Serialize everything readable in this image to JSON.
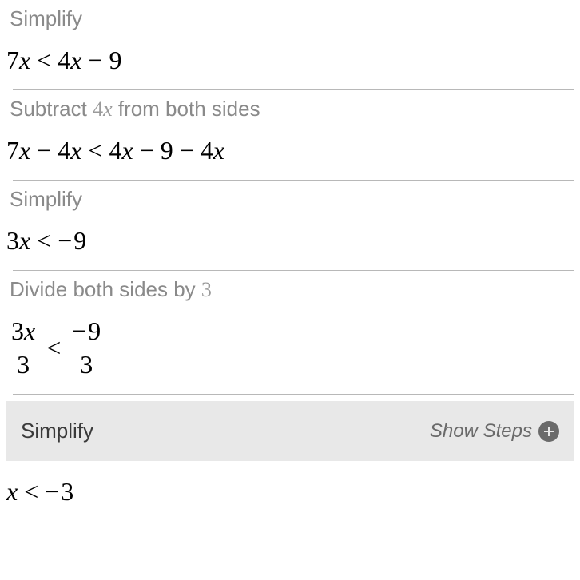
{
  "steps": [
    {
      "label": "Simplify",
      "equation_html": "7<span class='var'>x</span><span class='op'>&lt;</span>4<span class='var'>x</span><span class='op'>−</span>9"
    },
    {
      "label_html": "Subtract <span class='math-inline'>4<span class='var'>x</span></span> from both sides",
      "equation_html": "7<span class='var'>x</span><span class='op'>−</span>4<span class='var'>x</span><span class='op'>&lt;</span>4<span class='var'>x</span><span class='op'>−</span>9<span class='op'>−</span>4<span class='var'>x</span>"
    },
    {
      "label": "Simplify",
      "equation_html": "3<span class='var'>x</span><span class='op'>&lt;</span><span class='neg'>−</span>9"
    },
    {
      "label_html": "Divide both sides by <span class='math-inline'>3</span>",
      "equation_html": "<span class='frac'><span class='num'>3<span class='var'>x</span></span><span class='den'>3</span></span><span class='op'>&lt;</span><span class='frac'><span class='num'><span class='neg'>−</span>9</span><span class='den'>3</span></span>"
    }
  ],
  "expandable": {
    "label": "Simplify",
    "show_steps": "Show Steps"
  },
  "final_equation_html": "<span class='var'>x</span><span class='op'>&lt;</span><span class='neg'>−</span>3",
  "colors": {
    "label_gray": "#8a8a8a",
    "text_black": "#000000",
    "divider": "#b8b8b8",
    "expand_bg": "#e8e8e8",
    "expand_text": "#3a3a3a",
    "show_steps_text": "#6a6a6a"
  },
  "typography": {
    "label_fontsize": 26,
    "equation_fontsize": 32,
    "equation_font": "Georgia, Times New Roman, serif"
  }
}
